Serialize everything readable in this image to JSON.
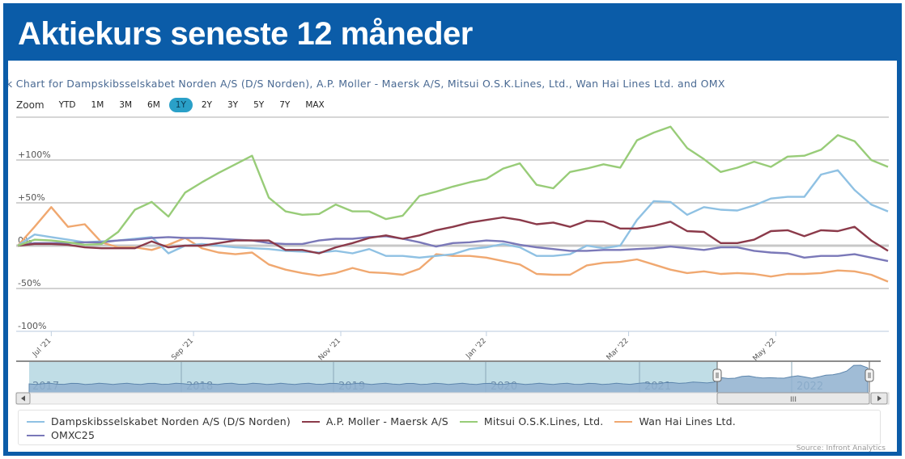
{
  "header": {
    "title": "Aktiekurs seneste 12 måneder"
  },
  "chart_heading": "k Chart for Dampskibsselskabet Norden A/S (D/S Norden), A.P. Moller - Maersk A/S, Mitsui O.S.K.Lines, Ltd., Wan Hai Lines Ltd. and OMX",
  "zoom": {
    "label": "Zoom",
    "buttons": [
      "YTD",
      "1M",
      "3M",
      "6M",
      "1Y",
      "2Y",
      "3Y",
      "5Y",
      "7Y",
      "MAX"
    ],
    "active": "1Y"
  },
  "navigator": {
    "years": [
      "2017",
      "2018",
      "2019",
      "2020",
      "2021",
      "2022"
    ],
    "scroll_grip": "III",
    "selected_range": "1Y"
  },
  "source": "Source: Infront Analytics",
  "chart_data": {
    "type": "line",
    "title": "Aktiekurs seneste 12 måneder",
    "xlabel": "",
    "ylabel": "",
    "ylim": [
      -100,
      150
    ],
    "y_ticks": [
      "+100%",
      "+50%",
      "0%",
      "-50%",
      "-100%"
    ],
    "y_tick_values": [
      100,
      50,
      0,
      -50,
      -100
    ],
    "x_ticks": [
      "Jul '21",
      "Sep '21",
      "Nov '21",
      "Jan '22",
      "Mar '22",
      "May '22"
    ],
    "x_tick_index": [
      2,
      10.5,
      19.3,
      28,
      36.5,
      45.3
    ],
    "n_points": 53,
    "grid": true,
    "legend_position": "bottom",
    "series": [
      {
        "name": "Dampskibsselskabet Norden A/S (D/S Norden)",
        "color": "#8fc1e3",
        "values": [
          0,
          13,
          10,
          7,
          4,
          5,
          6,
          8,
          10,
          -9,
          0,
          2,
          0,
          -2,
          -3,
          -4,
          -6,
          -7,
          -8,
          -6,
          -9,
          -4,
          -12,
          -12,
          -14,
          -12,
          -10,
          -4,
          -2,
          2,
          -2,
          -12,
          -12,
          -10,
          0,
          -3,
          0,
          30,
          52,
          51,
          36,
          45,
          42,
          41,
          47,
          55,
          57,
          57,
          83,
          88,
          65,
          48,
          40
        ]
      },
      {
        "name": "A.P. Moller - Maersk A/S",
        "color": "#8b3a4a",
        "values": [
          0,
          2,
          2,
          1,
          -2,
          -3,
          -3,
          -3,
          5,
          -2,
          0,
          0,
          3,
          6,
          6,
          6,
          -5,
          -5,
          -9,
          -2,
          3,
          9,
          12,
          8,
          12,
          18,
          22,
          27,
          30,
          33,
          30,
          25,
          27,
          22,
          29,
          28,
          20,
          20,
          23,
          28,
          17,
          16,
          3,
          3,
          7,
          17,
          18,
          11,
          18,
          17,
          22,
          6,
          -6
        ]
      },
      {
        "name": "Mitsui O.S.K.Lines, Ltd.",
        "color": "#98cc78",
        "values": [
          0,
          7,
          6,
          4,
          1,
          2,
          16,
          42,
          51,
          34,
          62,
          74,
          85,
          95,
          105,
          56,
          40,
          36,
          37,
          48,
          40,
          40,
          31,
          35,
          58,
          63,
          69,
          74,
          78,
          90,
          96,
          71,
          67,
          86,
          90,
          95,
          91,
          123,
          132,
          139,
          114,
          101,
          86,
          91,
          98,
          92,
          104,
          105,
          112,
          129,
          122,
          100,
          92
        ]
      },
      {
        "name": "Wan Hai Lines Ltd.",
        "color": "#f0a870",
        "values": [
          0,
          22,
          45,
          22,
          25,
          4,
          -2,
          -2,
          -5,
          1,
          9,
          -3,
          -8,
          -10,
          -8,
          -22,
          -28,
          -32,
          -35,
          -32,
          -26,
          -31,
          -32,
          -34,
          -27,
          -10,
          -12,
          -12,
          -14,
          -18,
          -22,
          -33,
          -34,
          -34,
          -23,
          -20,
          -19,
          -16,
          -22,
          -28,
          -32,
          -30,
          -33,
          -32,
          -33,
          -36,
          -33,
          -33,
          -32,
          -29,
          -30,
          -34,
          -42
        ]
      },
      {
        "name": "OMXC25",
        "color": "#7a78b8",
        "values": [
          0,
          3,
          3,
          3,
          4,
          4,
          6,
          7,
          9,
          10,
          9,
          9,
          8,
          7,
          6,
          3,
          2,
          2,
          6,
          8,
          8,
          10,
          11,
          8,
          4,
          -1,
          3,
          4,
          6,
          5,
          1,
          -2,
          -4,
          -6,
          -6,
          -5,
          -5,
          -4,
          -3,
          -1,
          -3,
          -5,
          -2,
          -2,
          -6,
          -8,
          -9,
          -14,
          -12,
          -12,
          -10,
          -14,
          -18
        ]
      }
    ]
  }
}
